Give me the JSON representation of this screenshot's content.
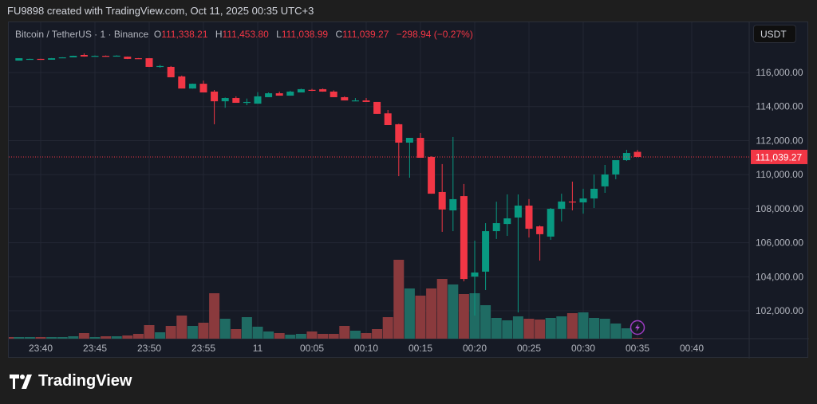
{
  "credit": "FU9898 created with TradingView.com, Oct 11, 2025 00:35 UTC+3",
  "legend": {
    "symbol": "Bitcoin / TetherUS · 1 · Binance",
    "o_label": "O",
    "o": "111,338.21",
    "h_label": "H",
    "h": "111,453.80",
    "l_label": "L",
    "l": "111,038.99",
    "c_label": "C",
    "c": "111,039.27",
    "change": "−298.94 (−0.27%)"
  },
  "currency_button": "USDT",
  "logo_text": "TradingView",
  "colors": {
    "up": "#089981",
    "down": "#f23645",
    "up_vol": "#1f6b63",
    "down_vol": "#8a3a3d",
    "bg": "#161a25"
  },
  "chart_data": {
    "type": "candlestick",
    "title": "Bitcoin / TetherUS · 1 · Binance",
    "ylim": [
      100500,
      117900
    ],
    "y_ticks": [
      "116,000.00",
      "114,000.00",
      "112,000.00",
      "110,000.00",
      "108,000.00",
      "106,000.00",
      "104,000.00",
      "102,000.00"
    ],
    "y_tick_values": [
      116000,
      114000,
      112000,
      110000,
      108000,
      106000,
      104000,
      102000
    ],
    "x_ticks": [
      "23:40",
      "23:45",
      "23:50",
      "23:55",
      "11",
      "00:05",
      "00:10",
      "00:15",
      "00:20",
      "00:25",
      "00:30",
      "00:35",
      "00:40"
    ],
    "x_tick_minutes": [
      0,
      5,
      10,
      15,
      20,
      25,
      30,
      35,
      40,
      45,
      50,
      55,
      60
    ],
    "last_price_label": "111,039.27",
    "last_price": 111039.27,
    "first_minute_offset": -3,
    "ohlc": [
      [
        116750,
        116790,
        116740,
        116740
      ],
      [
        116700,
        116840,
        116700,
        116840
      ],
      [
        116790,
        116810,
        116780,
        116800
      ],
      [
        116800,
        116810,
        116780,
        116790
      ],
      [
        116750,
        116850,
        116750,
        116840
      ],
      [
        116880,
        116900,
        116870,
        116890
      ],
      [
        116890,
        116990,
        116890,
        116980
      ],
      [
        117030,
        117120,
        116930,
        116940
      ],
      [
        116960,
        117000,
        116950,
        116980
      ],
      [
        116980,
        117000,
        116930,
        116940
      ],
      [
        116950,
        117010,
        116940,
        116990
      ],
      [
        116930,
        116940,
        116790,
        116800
      ],
      [
        116840,
        116850,
        116820,
        116830
      ],
      [
        116840,
        116850,
        116320,
        116330
      ],
      [
        116370,
        116440,
        116280,
        116380
      ],
      [
        116330,
        116380,
        115720,
        115720
      ],
      [
        115770,
        115820,
        115060,
        115060
      ],
      [
        115060,
        115350,
        115050,
        115340
      ],
      [
        115340,
        115520,
        114830,
        114830
      ],
      [
        114880,
        114970,
        112960,
        114310
      ],
      [
        114310,
        114530,
        113930,
        114500
      ],
      [
        114500,
        114600,
        114220,
        114220
      ],
      [
        114250,
        114470,
        114080,
        114270
      ],
      [
        114170,
        114850,
        114170,
        114600
      ],
      [
        114550,
        114830,
        114550,
        114780
      ],
      [
        114780,
        114880,
        114640,
        114640
      ],
      [
        114640,
        114930,
        114640,
        114880
      ],
      [
        114830,
        115050,
        114830,
        115020
      ],
      [
        114980,
        115040,
        114910,
        114970
      ],
      [
        115020,
        115060,
        114870,
        114880
      ],
      [
        114880,
        114950,
        114550,
        114550
      ],
      [
        114550,
        114600,
        114360,
        114360
      ],
      [
        114360,
        114500,
        114320,
        114360
      ],
      [
        114360,
        114500,
        114270,
        114270
      ],
      [
        114270,
        114270,
        113570,
        113570
      ],
      [
        113600,
        113800,
        112910,
        112910
      ],
      [
        112960,
        112990,
        109910,
        111880
      ],
      [
        111880,
        112160,
        109820,
        112160
      ],
      [
        112160,
        112440,
        110990,
        110990
      ],
      [
        111040,
        111080,
        108880,
        108880
      ],
      [
        108980,
        110620,
        106640,
        107950
      ],
      [
        107900,
        112210,
        106680,
        108560
      ],
      [
        108740,
        109450,
        103730,
        103870
      ],
      [
        104010,
        106120,
        101720,
        104250
      ],
      [
        104300,
        107150,
        103220,
        106680
      ],
      [
        106680,
        108410,
        106220,
        107150
      ],
      [
        107100,
        108840,
        106400,
        107430
      ],
      [
        107480,
        108840,
        101900,
        108180
      ],
      [
        108180,
        108560,
        106310,
        106820
      ],
      [
        106960,
        107010,
        104950,
        106500
      ],
      [
        106360,
        108040,
        106170,
        107990
      ],
      [
        107990,
        108880,
        107250,
        108420
      ],
      [
        108420,
        109590,
        107900,
        108370
      ],
      [
        108370,
        109170,
        107710,
        108600
      ],
      [
        108600,
        110010,
        108040,
        109170
      ],
      [
        109310,
        110570,
        108930,
        110010
      ],
      [
        110010,
        110850,
        109730,
        110850
      ],
      [
        110850,
        111460,
        110800,
        111270
      ],
      [
        111338.21,
        111453.8,
        111038.99,
        111039.27
      ]
    ],
    "volume_relative": [
      2,
      2,
      2,
      2,
      2,
      2,
      3,
      7,
      2,
      3,
      3,
      4,
      6,
      17,
      8,
      16,
      29,
      16,
      20,
      57,
      25,
      12,
      27,
      15,
      9,
      7,
      5,
      6,
      9,
      6,
      6,
      16,
      10,
      7,
      12,
      27,
      99,
      63,
      54,
      63,
      75,
      68,
      56,
      57,
      42,
      26,
      23,
      28,
      25,
      24,
      26,
      28,
      32,
      33,
      26,
      25,
      19,
      13,
      1
    ]
  }
}
